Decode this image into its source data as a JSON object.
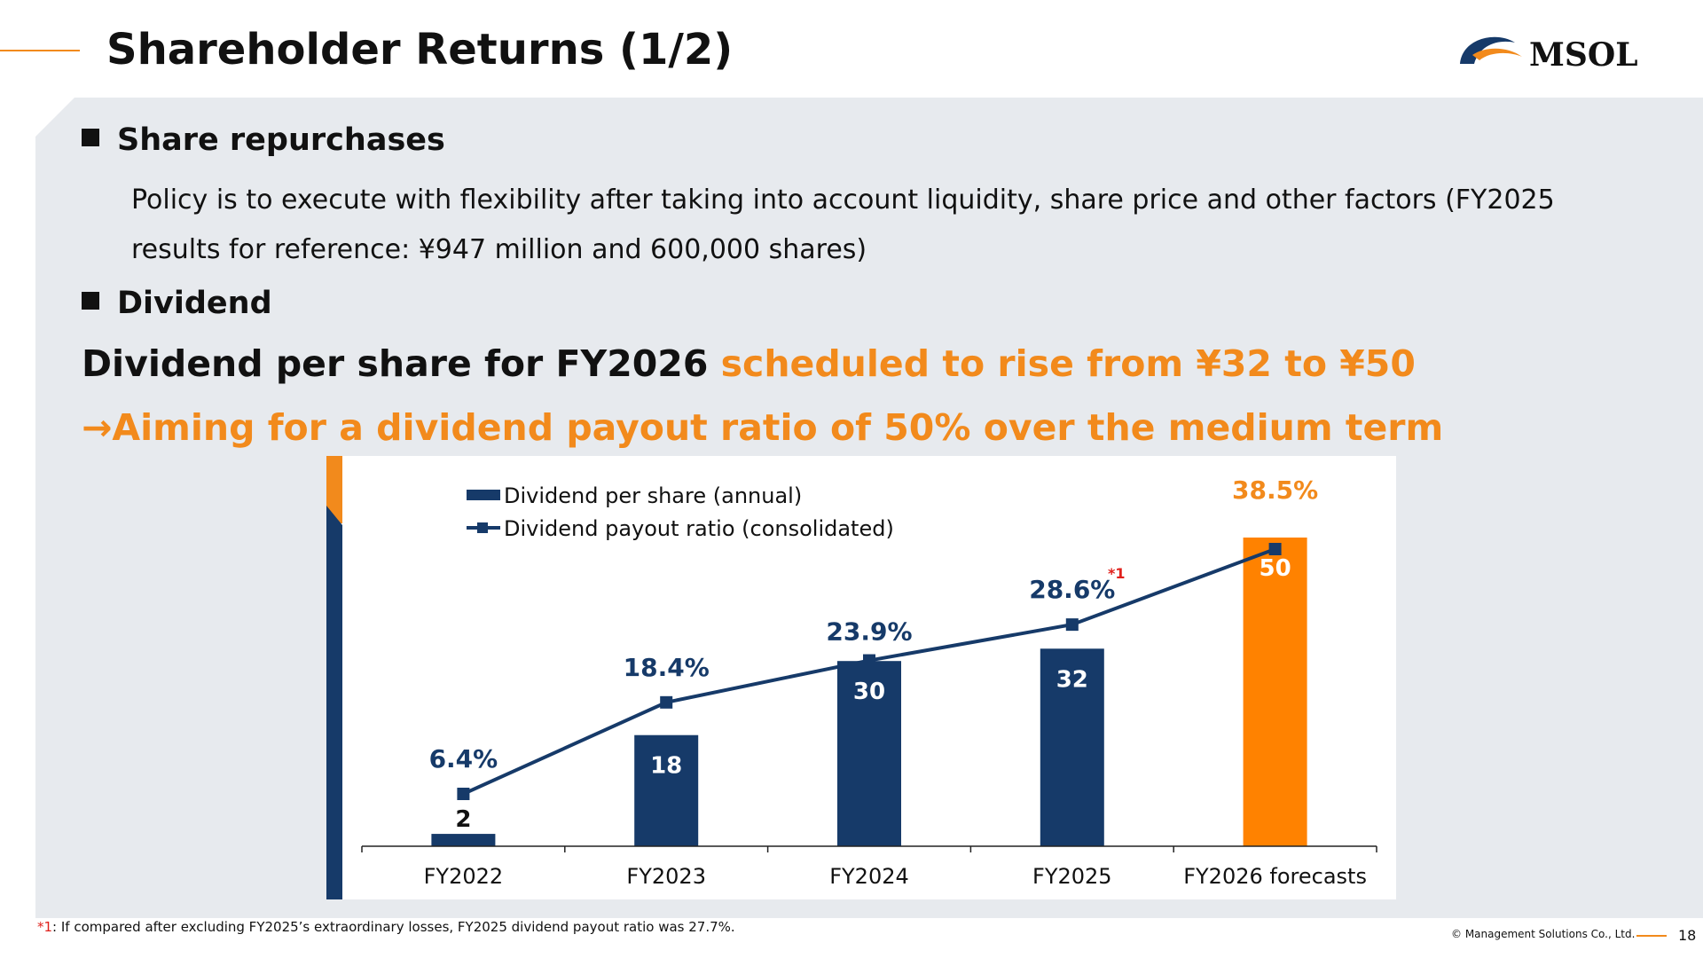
{
  "slide": {
    "title": "Shareholder Returns (1/2)",
    "brand": "MSOL",
    "page_number": "18",
    "copyright": "© Management Solutions Co., Ltd.",
    "colors": {
      "accent": "#f28a1c",
      "navy": "#163a69",
      "panel": "#e7eaee",
      "footnote_mark": "#e0201b"
    }
  },
  "sections": {
    "repurchase": {
      "heading": "Share repurchases",
      "body": "Policy is to execute with flexibility after taking into account liquidity, share price and other factors (FY2025 results for reference: ¥947 million and 600,000 shares)"
    },
    "dividend": {
      "heading": "Dividend",
      "headline_black": "Dividend per share for FY2026 ",
      "headline_orange": "scheduled to rise from ¥32 to ¥50",
      "aim": "→Aiming for a dividend payout ratio of 50% over the medium term"
    }
  },
  "footnote": {
    "mark": "*1",
    "text": ": If compared after excluding FY2025’s extraordinary losses, FY2025 dividend payout ratio was 27.7%."
  },
  "chart_data": {
    "type": "bar",
    "categories": [
      "FY2022",
      "FY2023",
      "FY2024",
      "FY2025",
      "FY2026 forecasts"
    ],
    "series": [
      {
        "name": "Dividend per share (annual)",
        "type": "bar",
        "values": [
          2,
          18,
          30,
          32,
          50
        ],
        "color": "#163a69",
        "highlight_last_color": "#ff8200"
      },
      {
        "name": "Dividend payout ratio (consolidated)",
        "type": "line",
        "values": [
          6.4,
          18.4,
          23.9,
          28.6,
          38.5
        ],
        "labels": [
          "6.4%",
          "18.4%",
          "23.9%",
          "28.6%",
          "38.5%"
        ],
        "color": "#163a69"
      }
    ],
    "bar_labels": [
      "2",
      "18",
      "30",
      "32",
      "50"
    ],
    "annotations": [
      {
        "category": "FY2025",
        "text": "*1",
        "color": "#e0201b"
      }
    ],
    "legend": "top-left",
    "grid": false
  }
}
